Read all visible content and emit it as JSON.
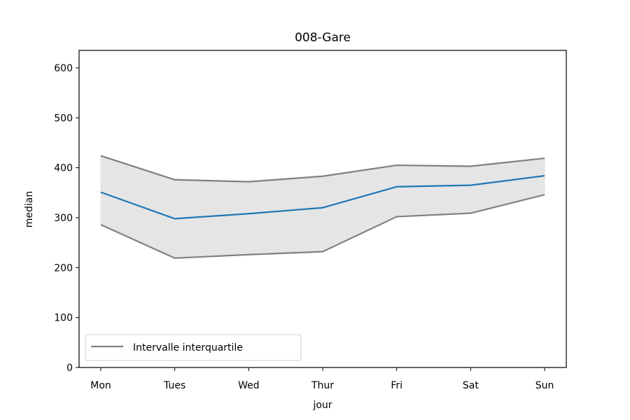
{
  "chart_data": {
    "type": "line",
    "title": "008-Gare",
    "xlabel": "jour",
    "ylabel": "median",
    "categories": [
      "Mon",
      "Tues",
      "Wed",
      "Thur",
      "Fri",
      "Sat",
      "Sun"
    ],
    "ylim": [
      0,
      635
    ],
    "yticks": [
      0,
      100,
      200,
      300,
      400,
      500,
      600
    ],
    "grid": false,
    "legend_position": "lower-left",
    "series": [
      {
        "values": [
          351,
          298,
          308,
          320,
          362,
          365,
          384
        ],
        "color": "#1f77b4",
        "role": "median"
      },
      {
        "name": "Intervalle interquartile",
        "values": [
          424,
          376,
          372,
          383,
          405,
          403,
          419
        ],
        "color": "#808080",
        "role": "q3"
      },
      {
        "values": [
          286,
          219,
          226,
          232,
          302,
          309,
          346
        ],
        "color": "#808080",
        "role": "q1"
      }
    ],
    "band_fill": "#e5e5e5"
  }
}
